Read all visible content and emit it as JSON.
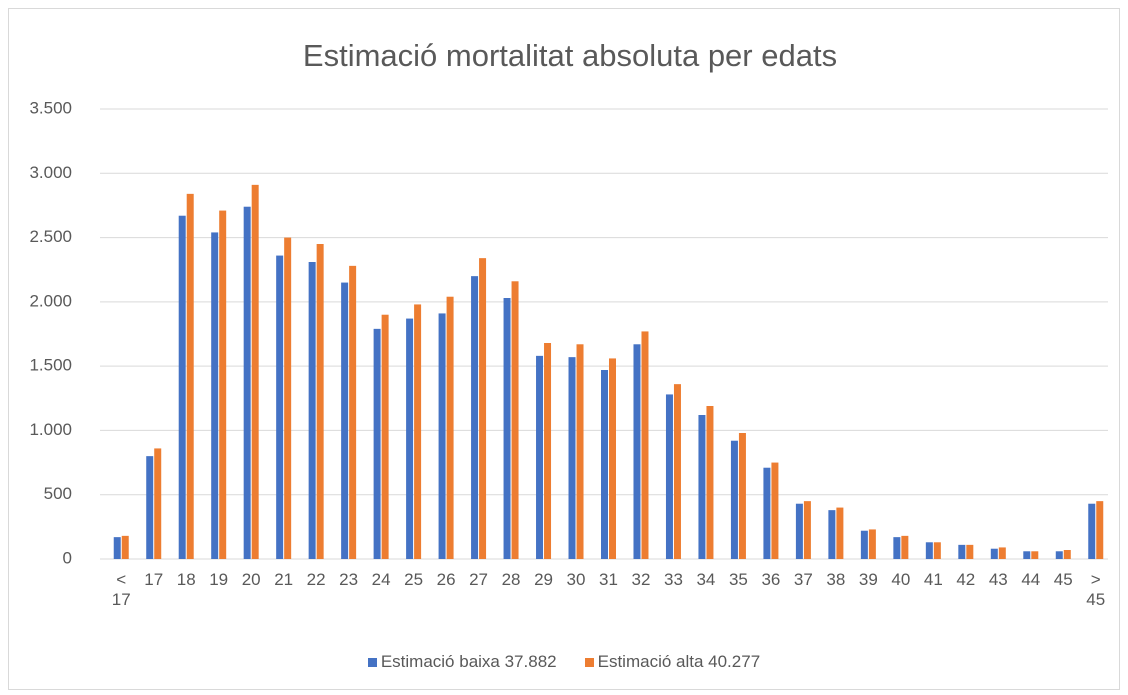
{
  "chart_data": {
    "type": "bar",
    "title": "Estimació mortalitat absoluta per edats",
    "categories": [
      "< 17",
      "17",
      "18",
      "19",
      "20",
      "21",
      "22",
      "23",
      "24",
      "25",
      "26",
      "27",
      "28",
      "29",
      "30",
      "31",
      "32",
      "33",
      "34",
      "35",
      "36",
      "37",
      "38",
      "39",
      "40",
      "41",
      "42",
      "43",
      "44",
      "45",
      "> 45"
    ],
    "series": [
      {
        "name": "Estimació baixa 37.882",
        "color": "#4472c4",
        "values": [
          170,
          800,
          2670,
          2540,
          2740,
          2360,
          2310,
          2150,
          1790,
          1870,
          1910,
          2200,
          2030,
          1580,
          1570,
          1470,
          1670,
          1280,
          1120,
          920,
          710,
          430,
          380,
          220,
          170,
          130,
          110,
          80,
          60,
          60,
          430
        ]
      },
      {
        "name": "Estimació alta 40.277",
        "color": "#ed7d31",
        "values": [
          180,
          860,
          2840,
          2710,
          2910,
          2500,
          2450,
          2280,
          1900,
          1980,
          2040,
          2340,
          2160,
          1680,
          1670,
          1560,
          1770,
          1360,
          1190,
          980,
          750,
          450,
          400,
          230,
          180,
          130,
          110,
          90,
          60,
          70,
          450
        ]
      }
    ],
    "ylim": [
      0,
      3500
    ],
    "yticks": [
      0,
      500,
      {
        "value": 1000,
        "label": "1.000"
      },
      {
        "value": 1500,
        "label": "1.500"
      },
      {
        "value": 2000,
        "label": "2.000"
      },
      {
        "value": 2500,
        "label": "2.500"
      },
      {
        "value": 3000,
        "label": "3.000"
      },
      {
        "value": 3500,
        "label": "3.500"
      }
    ],
    "grid": true,
    "legend": "bottom"
  }
}
